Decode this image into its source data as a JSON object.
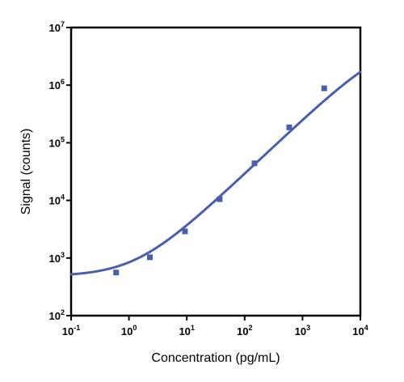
{
  "chart_data": {
    "type": "scatter",
    "xlabel": "Concentration (pg/mL)",
    "ylabel": "Signal (counts)",
    "x_scale": "log",
    "y_scale": "log",
    "xlim": [
      0.1,
      10000
    ],
    "ylim": [
      100,
      10000000
    ],
    "x_ticks": [
      {
        "value": 0.1,
        "base": "10",
        "exp": "-1"
      },
      {
        "value": 1,
        "base": "10",
        "exp": "0"
      },
      {
        "value": 10,
        "base": "10",
        "exp": "1"
      },
      {
        "value": 100,
        "base": "10",
        "exp": "2"
      },
      {
        "value": 1000,
        "base": "10",
        "exp": "3"
      },
      {
        "value": 10000,
        "base": "10",
        "exp": "4"
      }
    ],
    "y_ticks": [
      {
        "value": 100,
        "base": "10",
        "exp": "2"
      },
      {
        "value": 1000,
        "base": "10",
        "exp": "3"
      },
      {
        "value": 10000,
        "base": "10",
        "exp": "4"
      },
      {
        "value": 100000,
        "base": "10",
        "exp": "5"
      },
      {
        "value": 1000000,
        "base": "10",
        "exp": "6"
      },
      {
        "value": 10000000,
        "base": "10",
        "exp": "7"
      }
    ],
    "grid": false,
    "series": [
      {
        "color": "#4a5fa8",
        "marker": "square",
        "points": [
          {
            "x": 0.6,
            "y": 560
          },
          {
            "x": 2.3,
            "y": 1030
          },
          {
            "x": 9.3,
            "y": 2900
          },
          {
            "x": 37,
            "y": 10500
          },
          {
            "x": 148,
            "y": 44000
          },
          {
            "x": 590,
            "y": 185000
          },
          {
            "x": 2370,
            "y": 880000
          }
        ],
        "fit_curve": {
          "model": "4PL",
          "bottom": 480,
          "top": 6500000,
          "ec50": 30000,
          "hill": 0.95
        }
      }
    ]
  }
}
